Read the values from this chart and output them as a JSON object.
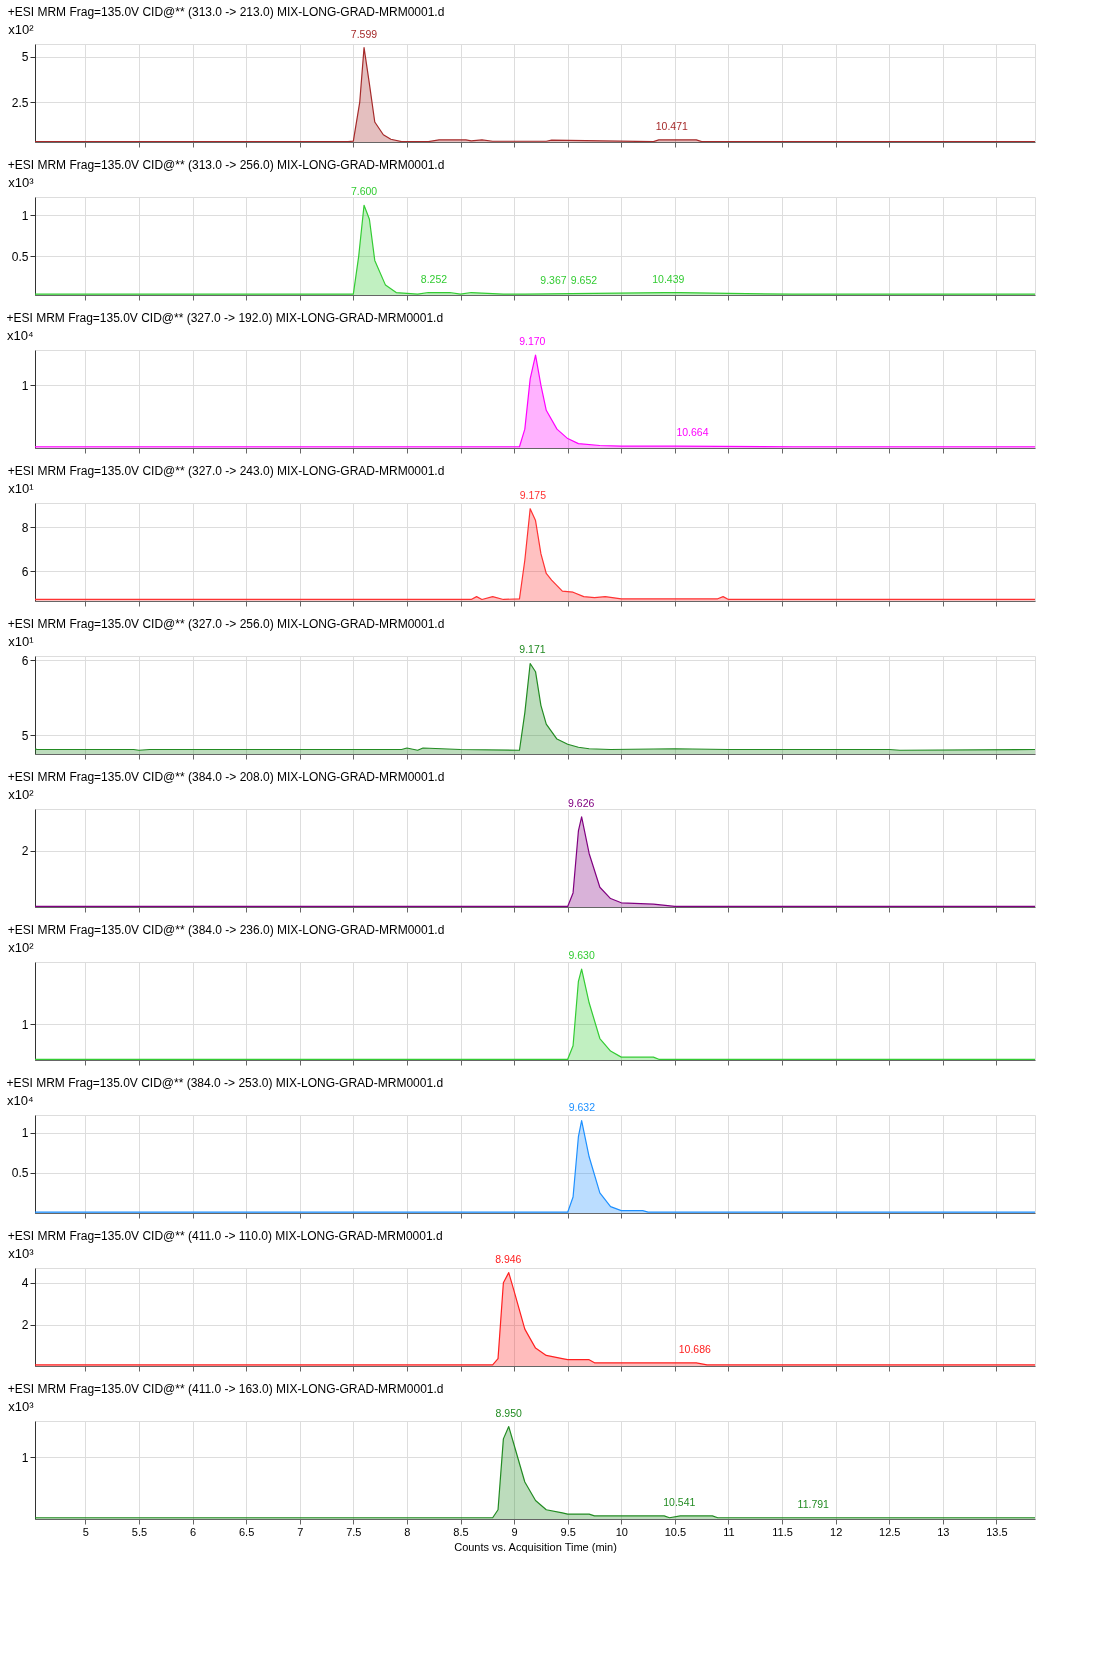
{
  "chart_data": [
    {
      "type": "area",
      "title": "+ESI MRM Frag=135.0V CID@** (313.0 -> 213.0) MIX-LONG-GRAD-MRM0001.d",
      "ylabel": "x10²",
      "xlim": [
        4.53,
        13.86
      ],
      "xticks": [
        5,
        5.5,
        6,
        6.5,
        7,
        7.5,
        8,
        8.5,
        9,
        9.5,
        10,
        10.5,
        11,
        11.5,
        12,
        12.5,
        13,
        13.5
      ],
      "ylim": [
        0.3,
        5.7
      ],
      "yticks": [
        2.5,
        5
      ],
      "grid": true,
      "tick_labels": "y",
      "series": [
        {
          "color": "#a52a2a",
          "x": [
            4.53,
            7.45,
            7.5,
            7.56,
            7.6,
            7.65,
            7.7,
            7.78,
            7.85,
            7.95,
            8.2,
            8.3,
            8.55,
            8.6,
            8.7,
            8.8,
            9.3,
            9.35,
            10.3,
            10.35,
            10.7,
            10.75,
            13.86
          ],
          "values": [
            0.32,
            0.32,
            0.35,
            2.5,
            5.5,
            3.5,
            1.4,
            0.7,
            0.45,
            0.32,
            0.32,
            0.42,
            0.42,
            0.36,
            0.42,
            0.34,
            0.34,
            0.4,
            0.32,
            0.42,
            0.42,
            0.32,
            0.32
          ]
        }
      ],
      "annotations": [
        {
          "text": "7.599",
          "x": 7.599,
          "y": 5.5
        },
        {
          "text": "10.471",
          "x": 10.471,
          "y": 0.42
        }
      ]
    },
    {
      "type": "area",
      "title": "+ESI MRM Frag=135.0V CID@** (313.0 -> 256.0) MIX-LONG-GRAD-MRM0001.d",
      "ylabel": "x10³",
      "xlim": [
        4.53,
        13.86
      ],
      "xticks": [
        5,
        5.5,
        6,
        6.5,
        7,
        7.5,
        8,
        8.5,
        9,
        9.5,
        10,
        10.5,
        11,
        11.5,
        12,
        12.5,
        13,
        13.5
      ],
      "ylim": [
        0.03,
        1.22
      ],
      "yticks": [
        0.5,
        1
      ],
      "grid": true,
      "tick_labels": "y",
      "series": [
        {
          "color": "#33cc33",
          "x": [
            4.53,
            7.5,
            7.55,
            7.6,
            7.65,
            7.7,
            7.8,
            7.9,
            8.1,
            8.2,
            8.4,
            8.5,
            8.6,
            8.9,
            9.1,
            10.4,
            10.55,
            11.0,
            11.6,
            13.86
          ],
          "values": [
            0.04,
            0.04,
            0.5,
            1.12,
            0.95,
            0.45,
            0.15,
            0.06,
            0.04,
            0.06,
            0.06,
            0.04,
            0.06,
            0.04,
            0.04,
            0.06,
            0.06,
            0.05,
            0.04,
            0.04
          ]
        }
      ],
      "annotations": [
        {
          "text": "7.600",
          "x": 7.6,
          "y": 1.12
        },
        {
          "text": "8.252",
          "x": 8.252,
          "y": 0.06
        },
        {
          "text": "9.367",
          "x": 9.367,
          "y": 0.04
        },
        {
          "text": "9.652",
          "x": 9.652,
          "y": 0.04
        },
        {
          "text": "10.439",
          "x": 10.439,
          "y": 0.06
        }
      ]
    },
    {
      "type": "area",
      "title": "+ESI MRM Frag=135.0V CID@** (327.0 -> 192.0) MIX-LONG-GRAD-MRM0001.d",
      "ylabel": "x10⁴",
      "xlim": [
        4.53,
        13.86
      ],
      "xticks": [
        5,
        5.5,
        6,
        6.5,
        7,
        7.5,
        8,
        8.5,
        9,
        9.5,
        10,
        10.5,
        11,
        11.5,
        12,
        12.5,
        13,
        13.5
      ],
      "ylim": [
        0,
        1.56
      ],
      "yticks": [
        1
      ],
      "grid": true,
      "tick_labels": "y",
      "series": [
        {
          "color": "#ff00ff",
          "x": [
            4.53,
            9.05,
            9.1,
            9.15,
            9.2,
            9.25,
            9.3,
            9.4,
            9.5,
            9.6,
            9.8,
            10.0,
            10.5,
            11.6,
            13.86
          ],
          "values": [
            0.02,
            0.02,
            0.3,
            1.1,
            1.48,
            1.0,
            0.6,
            0.3,
            0.15,
            0.07,
            0.04,
            0.03,
            0.03,
            0.02,
            0.02
          ]
        }
      ],
      "annotations": [
        {
          "text": "9.170",
          "x": 9.17,
          "y": 1.48
        },
        {
          "text": "10.664",
          "x": 10.664,
          "y": 0.03
        }
      ]
    },
    {
      "type": "area",
      "title": "+ESI MRM Frag=135.0V CID@** (327.0 -> 243.0) MIX-LONG-GRAD-MRM0001.d",
      "ylabel": "x10¹",
      "xlim": [
        4.53,
        13.86
      ],
      "xticks": [
        5,
        5.5,
        6,
        6.5,
        7,
        7.5,
        8,
        8.5,
        9,
        9.5,
        10,
        10.5,
        11,
        11.5,
        12,
        12.5,
        13,
        13.5
      ],
      "ylim": [
        4.65,
        9.1
      ],
      "yticks": [
        6,
        8
      ],
      "grid": true,
      "tick_labels": "y",
      "series": [
        {
          "color": "#ff3333",
          "x": [
            4.53,
            8.6,
            8.65,
            8.7,
            8.8,
            8.9,
            9.05,
            9.1,
            9.15,
            9.2,
            9.25,
            9.3,
            9.35,
            9.45,
            9.55,
            9.65,
            9.75,
            9.85,
            10.0,
            10.9,
            10.95,
            11.0,
            13.86
          ],
          "values": [
            4.72,
            4.72,
            4.85,
            4.72,
            4.85,
            4.72,
            4.75,
            6.5,
            8.84,
            8.3,
            6.8,
            5.9,
            5.6,
            5.1,
            5.05,
            4.85,
            4.8,
            4.85,
            4.75,
            4.75,
            4.85,
            4.72,
            4.72
          ]
        }
      ],
      "annotations": [
        {
          "text": "9.175",
          "x": 9.175,
          "y": 8.84
        }
      ]
    },
    {
      "type": "area",
      "title": "+ESI MRM Frag=135.0V CID@** (327.0 -> 256.0) MIX-LONG-GRAD-MRM0001.d",
      "ylabel": "x10¹",
      "xlim": [
        4.53,
        13.86
      ],
      "xticks": [
        5,
        5.5,
        6,
        6.5,
        7,
        7.5,
        8,
        8.5,
        9,
        9.5,
        10,
        10.5,
        11,
        11.5,
        12,
        12.5,
        13,
        13.5
      ],
      "ylim": [
        4.75,
        6.06
      ],
      "yticks": [
        5,
        6
      ],
      "grid": true,
      "tick_labels": "y",
      "series": [
        {
          "color": "#228b22",
          "x": [
            4.53,
            4.55,
            5.45,
            5.5,
            5.6,
            6.5,
            7.95,
            8.0,
            8.1,
            8.15,
            8.5,
            9.05,
            9.1,
            9.15,
            9.2,
            9.25,
            9.3,
            9.4,
            9.5,
            9.6,
            9.7,
            9.9,
            10.5,
            11.0,
            12.5,
            12.6,
            13.86
          ],
          "values": [
            4.82,
            4.81,
            4.81,
            4.8,
            4.81,
            4.81,
            4.81,
            4.83,
            4.8,
            4.83,
            4.81,
            4.8,
            5.3,
            5.96,
            5.85,
            5.4,
            5.15,
            4.95,
            4.88,
            4.84,
            4.82,
            4.81,
            4.82,
            4.81,
            4.81,
            4.8,
            4.81
          ]
        }
      ],
      "annotations": [
        {
          "text": "9.171",
          "x": 9.171,
          "y": 5.96
        }
      ]
    },
    {
      "type": "area",
      "title": "+ESI MRM Frag=135.0V CID@** (384.0 -> 208.0) MIX-LONG-GRAD-MRM0001.d",
      "ylabel": "x10²",
      "xlim": [
        4.53,
        13.86
      ],
      "xticks": [
        5,
        5.5,
        6,
        6.5,
        7,
        7.5,
        8,
        8.5,
        9,
        9.5,
        10,
        10.5,
        11,
        11.5,
        12,
        12.5,
        13,
        13.5
      ],
      "ylim": [
        0,
        3.48
      ],
      "yticks": [
        2
      ],
      "grid": true,
      "tick_labels": "y",
      "series": [
        {
          "color": "#800080",
          "x": [
            4.53,
            9.5,
            9.55,
            9.6,
            9.63,
            9.7,
            9.8,
            9.9,
            10.0,
            10.3,
            10.5,
            13.86
          ],
          "values": [
            0.02,
            0.02,
            0.5,
            2.7,
            3.2,
            1.9,
            0.7,
            0.3,
            0.15,
            0.1,
            0.02,
            0.02
          ]
        }
      ],
      "annotations": [
        {
          "text": "9.626",
          "x": 9.626,
          "y": 3.2
        }
      ]
    },
    {
      "type": "area",
      "title": "+ESI MRM Frag=135.0V CID@** (384.0 -> 236.0) MIX-LONG-GRAD-MRM0001.d",
      "ylabel": "x10²",
      "xlim": [
        4.53,
        13.86
      ],
      "xticks": [
        5,
        5.5,
        6,
        6.5,
        7,
        7.5,
        8,
        8.5,
        9,
        9.5,
        10,
        10.5,
        11,
        11.5,
        12,
        12.5,
        13,
        13.5
      ],
      "ylim": [
        0,
        2.74
      ],
      "yticks": [
        1
      ],
      "grid": true,
      "tick_labels": "y",
      "series": [
        {
          "color": "#33cc33",
          "x": [
            4.53,
            9.5,
            9.55,
            9.6,
            9.63,
            9.7,
            9.8,
            9.9,
            10.0,
            10.3,
            10.35,
            13.86
          ],
          "values": [
            0.02,
            0.02,
            0.4,
            2.2,
            2.54,
            1.6,
            0.6,
            0.25,
            0.08,
            0.08,
            0.02,
            0.02
          ]
        }
      ],
      "annotations": [
        {
          "text": "9.630",
          "x": 9.63,
          "y": 2.54
        }
      ]
    },
    {
      "type": "area",
      "title": "+ESI MRM Frag=135.0V CID@** (384.0 -> 253.0) MIX-LONG-GRAD-MRM0001.d",
      "ylabel": "x10⁴",
      "xlim": [
        4.53,
        13.86
      ],
      "xticks": [
        5,
        5.5,
        6,
        6.5,
        7,
        7.5,
        8,
        8.5,
        9,
        9.5,
        10,
        10.5,
        11,
        11.5,
        12,
        12.5,
        13,
        13.5
      ],
      "ylim": [
        0,
        1.22
      ],
      "yticks": [
        0.5,
        1
      ],
      "grid": true,
      "tick_labels": "y",
      "series": [
        {
          "color": "#1e90ff",
          "x": [
            4.53,
            9.5,
            9.55,
            9.6,
            9.63,
            9.7,
            9.8,
            9.9,
            10.0,
            10.2,
            10.25,
            13.86
          ],
          "values": [
            0.01,
            0.01,
            0.2,
            0.95,
            1.15,
            0.7,
            0.25,
            0.08,
            0.03,
            0.03,
            0.01,
            0.01
          ]
        }
      ],
      "annotations": [
        {
          "text": "9.632",
          "x": 9.632,
          "y": 1.15
        }
      ]
    },
    {
      "type": "area",
      "title": "+ESI MRM Frag=135.0V CID@** (411.0 -> 110.0) MIX-LONG-GRAD-MRM0001.d",
      "ylabel": "x10³",
      "xlim": [
        4.53,
        13.86
      ],
      "xticks": [
        5,
        5.5,
        6,
        6.5,
        7,
        7.5,
        8,
        8.5,
        9,
        9.5,
        10,
        10.5,
        11,
        11.5,
        12,
        12.5,
        13,
        13.5
      ],
      "ylim": [
        0.05,
        4.7
      ],
      "yticks": [
        2,
        4
      ],
      "grid": true,
      "tick_labels": "y",
      "series": [
        {
          "color": "#ff2020",
          "x": [
            4.53,
            8.8,
            8.85,
            8.9,
            8.95,
            9.0,
            9.1,
            9.2,
            9.3,
            9.45,
            9.5,
            9.7,
            9.75,
            10.7,
            10.8,
            13.86
          ],
          "values": [
            0.1,
            0.1,
            0.4,
            4.0,
            4.48,
            3.6,
            1.8,
            0.9,
            0.55,
            0.4,
            0.35,
            0.35,
            0.2,
            0.2,
            0.1,
            0.1
          ]
        }
      ],
      "annotations": [
        {
          "text": "8.946",
          "x": 8.946,
          "y": 4.48
        },
        {
          "text": "10.686",
          "x": 10.686,
          "y": 0.2
        }
      ]
    },
    {
      "type": "area",
      "title": "+ESI MRM Frag=135.0V CID@** (411.0 -> 163.0) MIX-LONG-GRAD-MRM0001.d",
      "ylabel": "x10³",
      "xlabel": "Counts vs. Acquisition Time (min)",
      "xlim": [
        4.53,
        13.86
      ],
      "xticks": [
        5,
        5.5,
        6,
        6.5,
        7,
        7.5,
        8,
        8.5,
        9,
        9.5,
        10,
        10.5,
        11,
        11.5,
        12,
        12.5,
        13,
        13.5
      ],
      "ylim": [
        0,
        1.59
      ],
      "yticks": [
        1
      ],
      "grid": true,
      "series": [
        {
          "color": "#228b22",
          "x": [
            4.53,
            8.8,
            8.85,
            8.9,
            8.95,
            9.0,
            9.1,
            9.2,
            9.3,
            9.45,
            9.5,
            9.7,
            9.75,
            10.4,
            10.45,
            10.55,
            10.7,
            10.85,
            10.9,
            13.86
          ],
          "values": [
            0.02,
            0.02,
            0.15,
            1.3,
            1.5,
            1.2,
            0.6,
            0.3,
            0.15,
            0.1,
            0.08,
            0.08,
            0.05,
            0.05,
            0.02,
            0.05,
            0.05,
            0.05,
            0.02,
            0.02
          ]
        }
      ],
      "annotations": [
        {
          "text": "8.950",
          "x": 8.95,
          "y": 1.5
        },
        {
          "text": "10.541",
          "x": 10.541,
          "y": 0.05
        },
        {
          "text": "11.791",
          "x": 11.791,
          "y": 0.02
        }
      ]
    }
  ]
}
